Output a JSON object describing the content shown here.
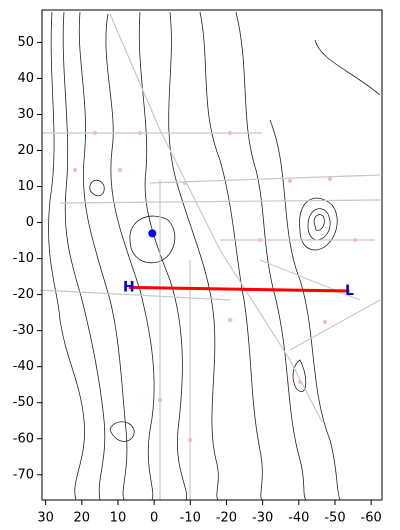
{
  "chart_data": {
    "type": "map",
    "xlim": [
      31,
      -63
    ],
    "ylim": [
      -77,
      59
    ],
    "xticks": [
      30,
      20,
      10,
      0,
      -10,
      -20,
      -30,
      -40,
      -50,
      -60
    ],
    "yticks": [
      50,
      40,
      30,
      20,
      10,
      0,
      -10,
      -20,
      -30,
      -40,
      -50,
      -60,
      -70
    ],
    "markers": [
      {
        "label": "H",
        "x": 7,
        "y": -18,
        "color": "#0000cc"
      },
      {
        "label": "L",
        "x": -54,
        "y": -19,
        "color": "#0000cc"
      }
    ],
    "line_color": "#ff0000",
    "center": {
      "x": 0.5,
      "y": -3,
      "color": "#0000ff"
    }
  }
}
